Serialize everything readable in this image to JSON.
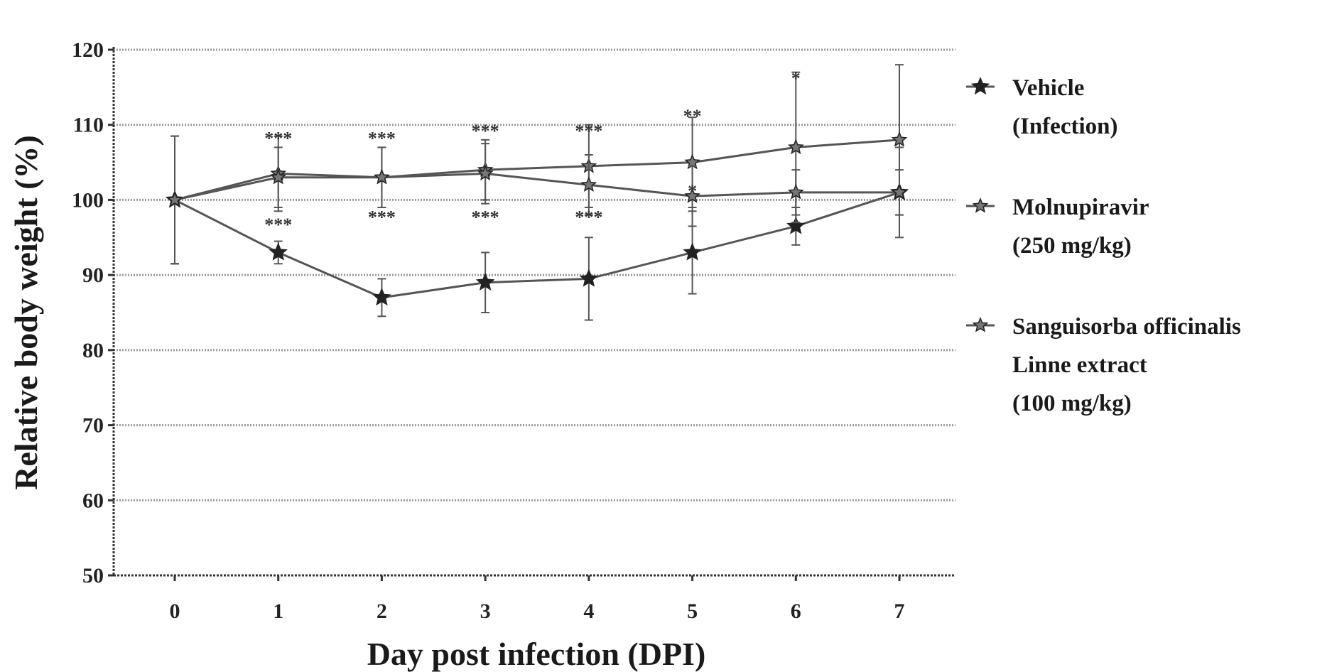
{
  "chart_data": {
    "type": "line",
    "xlabel": "Day post infection (DPI)",
    "ylabel": "Relative body weight (%)",
    "x": [
      0,
      1,
      2,
      3,
      4,
      5,
      6,
      7
    ],
    "ylim": [
      50,
      120
    ],
    "yticks": [
      50,
      60,
      70,
      80,
      90,
      100,
      110,
      120
    ],
    "grid": true,
    "legend_position": "right",
    "series": [
      {
        "name": "Vehicle (Infection)",
        "legend_lines": [
          "Vehicle",
          "(Infection)"
        ],
        "marker": "star-filled",
        "values": [
          100,
          93,
          87,
          89,
          89.5,
          93,
          96.5,
          101
        ],
        "errors": [
          8.5,
          1.5,
          2.5,
          4,
          5.5,
          5.5,
          2.5,
          6
        ]
      },
      {
        "name": "Molnupiravir (250 mg/kg)",
        "legend_lines": [
          "Molnupiravir",
          "(250 mg/kg)"
        ],
        "marker": "star",
        "values": [
          100,
          103.5,
          103,
          104,
          104.5,
          105,
          107,
          108
        ],
        "errors": [
          8.5,
          5,
          4,
          4,
          5.5,
          6,
          10,
          10
        ]
      },
      {
        "name": "Sanguisorba officinalis Linne extract (100 mg/kg)",
        "legend_lines": [
          "Sanguisorba officinalis",
          "Linne extract",
          "(100 mg/kg)"
        ],
        "marker": "star",
        "values": [
          100,
          103,
          103,
          103.5,
          102,
          100.5,
          101,
          101
        ],
        "errors": [
          8.5,
          4,
          4,
          4,
          4,
          4,
          3,
          3
        ]
      }
    ],
    "annotations": [
      {
        "x": 1,
        "y": 108.5,
        "text": "***"
      },
      {
        "x": 2,
        "y": 108.5,
        "text": "***"
      },
      {
        "x": 3,
        "y": 109.5,
        "text": "***"
      },
      {
        "x": 4,
        "y": 109.5,
        "text": "***"
      },
      {
        "x": 5,
        "y": 111.5,
        "text": "**"
      },
      {
        "x": 6,
        "y": 116.5,
        "text": "*"
      },
      {
        "x": 1,
        "y": 97,
        "text": "***"
      },
      {
        "x": 2,
        "y": 98,
        "text": "***"
      },
      {
        "x": 3,
        "y": 98,
        "text": "***"
      },
      {
        "x": 4,
        "y": 98,
        "text": "***"
      },
      {
        "x": 5,
        "y": 101.5,
        "text": "*"
      }
    ],
    "colors": {
      "line": "#555555",
      "grid": "#9a9a9a",
      "axis": "#333333",
      "marker": "#222222"
    }
  }
}
